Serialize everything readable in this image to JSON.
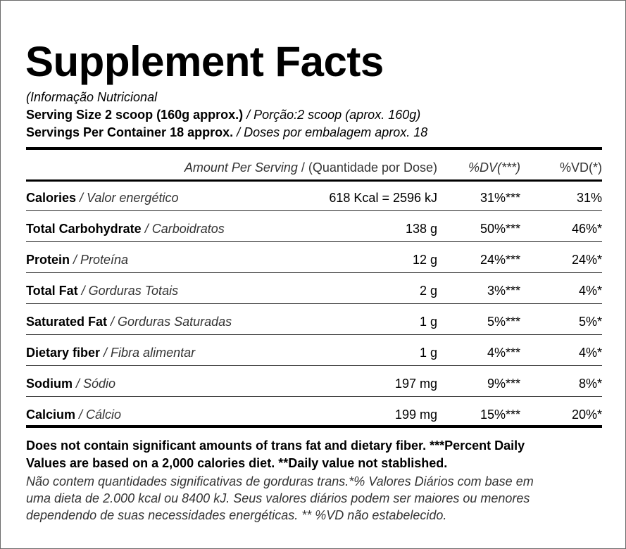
{
  "title": "Supplement Facts",
  "subtitle": "(Informação Nutricional",
  "serving_size": {
    "label": "Serving Size 2 scoop (160g approx.)",
    "translation": " / Porção:2 scoop (aprox. 160g)"
  },
  "servings_per_container": {
    "label": "Servings Per Container 18 approx.",
    "translation": " / Doses por embalagem aprox. 18"
  },
  "header": {
    "amount_per_serving": "Amount Per Serving",
    "quantity": " / (Quantidade por Dose)",
    "dv": "%DV(***)",
    "vd": "%VD(*)"
  },
  "rows": [
    {
      "name": "Calories",
      "translation": " / Valor energético",
      "amount": "618 Kcal = 2596 kJ",
      "dv": "31%***",
      "vd": "31%"
    },
    {
      "name": "Total Carbohydrate",
      "translation": " / Carboidratos",
      "amount": "138 g",
      "dv": "50%***",
      "vd": "46%*"
    },
    {
      "name": "Protein",
      "translation": " / Proteína",
      "amount": "12 g",
      "dv": "24%***",
      "vd": "24%*"
    },
    {
      "name": "Total Fat",
      "translation": " / Gorduras Totais",
      "amount": "2 g",
      "dv": "3%***",
      "vd": "4%*"
    },
    {
      "name": "Saturated Fat",
      "translation": " / Gorduras Saturadas",
      "amount": "1 g",
      "dv": "5%***",
      "vd": "5%*"
    },
    {
      "name": "Dietary fiber",
      "translation": " / Fibra alimentar",
      "amount": "1 g",
      "dv": "4%***",
      "vd": "4%*"
    },
    {
      "name": "Sodium",
      "translation": " / Sódio",
      "amount": "197 mg",
      "dv": "9%***",
      "vd": "8%*"
    },
    {
      "name": "Calcium",
      "translation": " / Cálcio",
      "amount": "199 mg",
      "dv": "15%***",
      "vd": "20%*"
    }
  ],
  "footnote_en": {
    "line1": "Does not contain significant amounts of trans fat and dietary fiber. ***Percent Daily",
    "line2": "Values are based on a 2,000 calories diet. **Daily value not stablished."
  },
  "footnote_pt": {
    "line1": "Não contem quantidades significativas de gorduras trans.*% Valores Diários com base em",
    "line2": "uma dieta de 2.000 kcal ou 8400 kJ. Seus valores diários podem ser maiores ou menores",
    "line3": "dependendo de suas necessidades energéticas. ** %VD não estabelecido."
  }
}
